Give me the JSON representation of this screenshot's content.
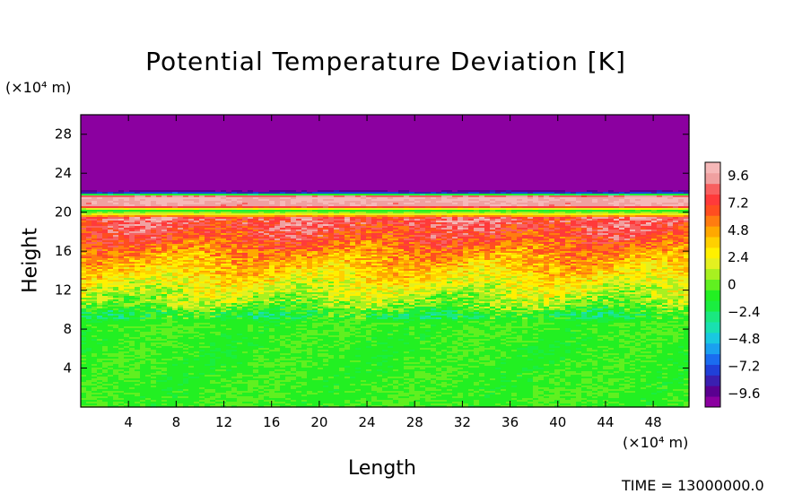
{
  "chart_data": {
    "type": "heatmap",
    "title": "Potential Temperature Deviation [K]",
    "xlabel": "Length",
    "ylabel": "Height",
    "x_unit": "(×10⁴ m)",
    "y_unit": "(×10⁴ m)",
    "xlim": [
      0,
      51
    ],
    "ylim": [
      0,
      30
    ],
    "x_ticks": [
      4,
      8,
      12,
      16,
      20,
      24,
      28,
      32,
      36,
      40,
      44,
      48
    ],
    "y_ticks": [
      4,
      8,
      12,
      16,
      20,
      24,
      28
    ],
    "colorbar": {
      "range": [
        -10.8,
        10.8
      ],
      "tick_values": [
        9.6,
        7.2,
        4.8,
        2.4,
        0,
        -2.4,
        -4.8,
        -7.2,
        -9.6
      ],
      "tick_labels": [
        "9.6",
        "7.2",
        "4.8",
        "2.4",
        "0",
        "−2.4",
        "−4.8",
        "−7.2",
        "−9.6"
      ],
      "colors": [
        "#8b00a0",
        "#5a0090",
        "#3a1fb0",
        "#2040d8",
        "#1a6cf0",
        "#1aa0f0",
        "#19c8e0",
        "#19e0b0",
        "#1ae880",
        "#1aee40",
        "#22f022",
        "#60f020",
        "#a8f020",
        "#e4f020",
        "#fff000",
        "#ffd000",
        "#ffa800",
        "#ff7c10",
        "#ff4e20",
        "#ff3a3a",
        "#f86060",
        "#f0a0a0",
        "#f6b8b8"
      ]
    },
    "profile": [
      {
        "height": 0,
        "value": -0.6
      },
      {
        "height": 6,
        "value": -0.8
      },
      {
        "height": 8.5,
        "value": -0.6
      },
      {
        "height": 9.5,
        "value": -1.6
      },
      {
        "height": 10.5,
        "value": 0.4
      },
      {
        "height": 12,
        "value": 1.8
      },
      {
        "height": 13.5,
        "value": 3.2
      },
      {
        "height": 15,
        "value": 4.4
      },
      {
        "height": 16.5,
        "value": 6.0
      },
      {
        "height": 18,
        "value": 7.4
      },
      {
        "height": 19.4,
        "value": 8.4
      },
      {
        "height": 19.8,
        "value": 2.0
      },
      {
        "height": 20.2,
        "value": -1.5
      },
      {
        "height": 20.6,
        "value": 9.5
      },
      {
        "height": 21.6,
        "value": 10.2
      },
      {
        "height": 21.9,
        "value": -7.0
      },
      {
        "height": 22.3,
        "value": -10.8
      },
      {
        "height": 30,
        "value": -10.8
      }
    ]
  },
  "footer": {
    "timestamp": "TIME = 13000000.0"
  }
}
